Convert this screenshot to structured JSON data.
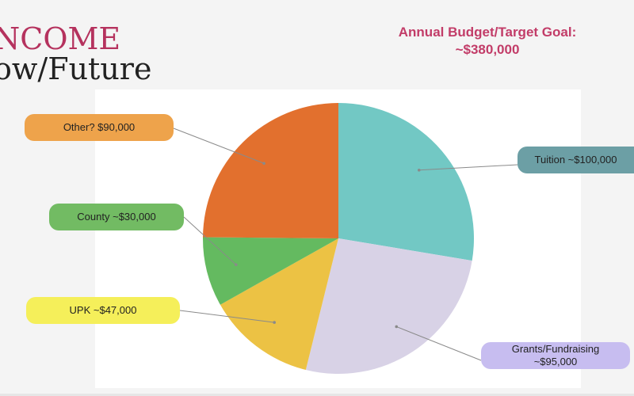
{
  "slide": {
    "title_line1": "NCOME",
    "title_line2": "ow/Future"
  },
  "goal": {
    "line1": "Annual Budget/Target Goal:",
    "line2": "~$380,000"
  },
  "chart_data": {
    "type": "pie",
    "slices": [
      {
        "label": "Tuition ~$100,000",
        "value": 100000,
        "color": "#72c8c4"
      },
      {
        "label": "Grants/Fundraising ~$95,000",
        "value": 95000,
        "color": "#d8d2e6"
      },
      {
        "label": "UPK ~$47,000",
        "value": 47000,
        "color": "#ecc244"
      },
      {
        "label": "County ~$30,000",
        "value": 30000,
        "color": "#64ba60"
      },
      {
        "label": "Other? $90,000",
        "value": 90000,
        "color": "#e2702e"
      }
    ]
  },
  "callouts": {
    "other": {
      "text": "Other? $90,000",
      "color": "#eea34b"
    },
    "county": {
      "text": "County ~$30,000",
      "color": "#72bb63"
    },
    "upk": {
      "text": "UPK ~$47,000",
      "color": "#f5ef5a"
    },
    "tuition": {
      "text": "Tuition ~$100,000",
      "color": "#6c9fa5"
    },
    "grants": {
      "line1": "Grants/Fundraising",
      "line2": "~$95,000",
      "color": "#c7bdf0"
    }
  }
}
